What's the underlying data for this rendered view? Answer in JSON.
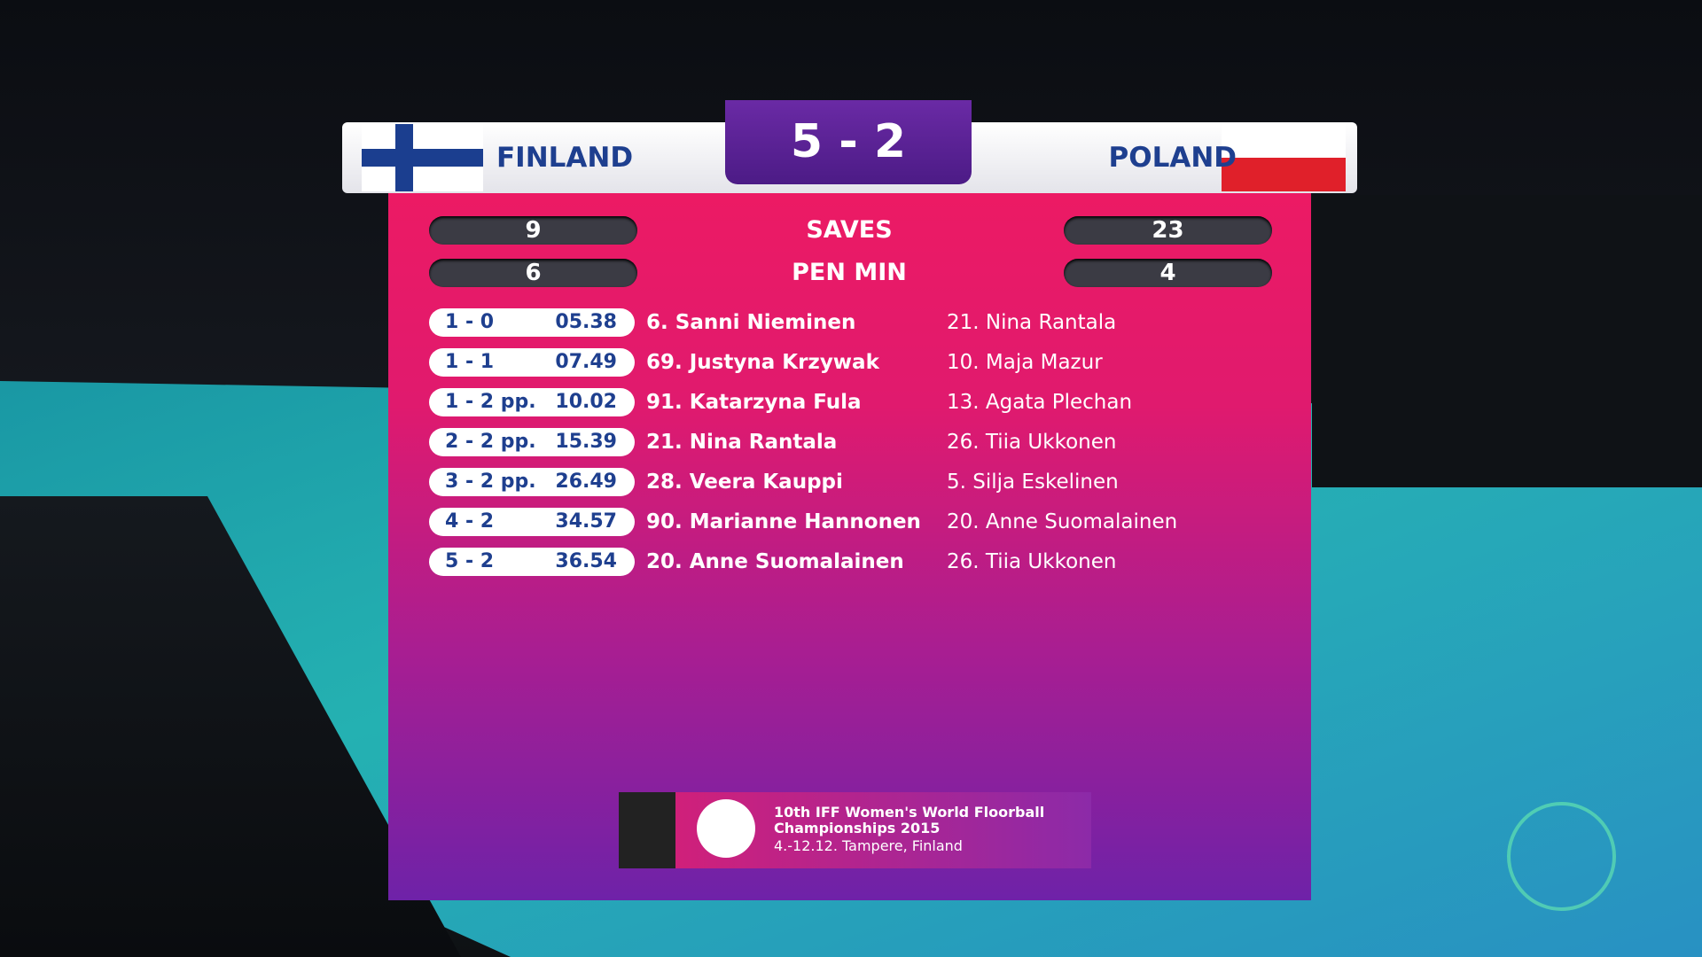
{
  "scoreboard": {
    "home_team": "FINLAND",
    "away_team": "POLAND",
    "score": "5 - 2",
    "stats": [
      {
        "label": "SAVES",
        "home": 9,
        "away": 23
      },
      {
        "label": "PEN MIN",
        "home": 6,
        "away": 4
      }
    ],
    "goals": [
      {
        "score": "1 - 0",
        "time": "05.38",
        "scorer": "6. Sanni Nieminen",
        "assist": "21. Nina Rantala"
      },
      {
        "score": "1 - 1",
        "time": "07.49",
        "scorer": "69. Justyna Krzywak",
        "assist": "10. Maja Mazur"
      },
      {
        "score": "1 - 2 pp.",
        "time": "10.02",
        "scorer": "91. Katarzyna Fula",
        "assist": "13. Agata Plechan"
      },
      {
        "score": "2 - 2 pp.",
        "time": "15.39",
        "scorer": "21. Nina Rantala",
        "assist": "26. Tiia Ukkonen"
      },
      {
        "score": "3 - 2 pp.",
        "time": "26.49",
        "scorer": "28. Veera Kauppi",
        "assist": "5. Silja Eskelinen"
      },
      {
        "score": "4 - 2",
        "time": "34.57",
        "scorer": "90. Marianne Hannonen",
        "assist": "20. Anne Suomalainen"
      },
      {
        "score": "5 - 2",
        "time": "36.54",
        "scorer": "20. Anne Suomalainen",
        "assist": "26. Tiia Ukkonen"
      }
    ]
  },
  "footer": {
    "event": "10th IFF Women's World Floorball Championships 2015",
    "dates": "4.-12.12. Tampere, Finland"
  }
}
